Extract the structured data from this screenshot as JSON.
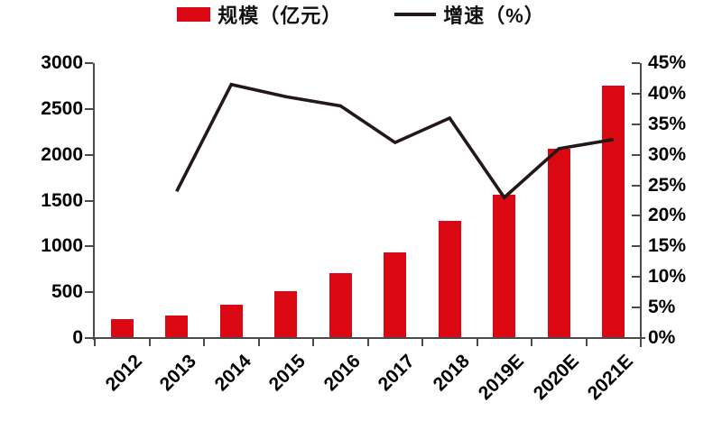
{
  "legend": {
    "items": [
      {
        "label": "规模（亿元）",
        "swatch": "bar"
      },
      {
        "label": "增速（%）",
        "swatch": "line"
      }
    ]
  },
  "colors": {
    "bar": "#DA0812",
    "line": "#231815",
    "axis": "#4A4A4A",
    "text": "#000000"
  },
  "chart_data": {
    "type": "bar+line",
    "title": "",
    "categories": [
      "2012",
      "2013",
      "2014",
      "2015",
      "2016",
      "2017",
      "2018",
      "2019E",
      "2020E",
      "2021E"
    ],
    "series": [
      {
        "name": "规模（亿元）",
        "type": "bar",
        "axis": "left",
        "values": [
          210,
          250,
          360,
          510,
          710,
          935,
          1280,
          1560,
          2070,
          2750
        ]
      },
      {
        "name": "增速（%）",
        "type": "line",
        "axis": "right",
        "values": [
          null,
          24,
          41.5,
          39.5,
          38,
          32,
          36,
          23,
          31,
          32.5
        ]
      }
    ],
    "left_axis": {
      "min": 0,
      "max": 3000,
      "step": 500,
      "labels": [
        "0",
        "500",
        "1000",
        "1500",
        "2000",
        "2500",
        "3000"
      ]
    },
    "right_axis": {
      "min": 0,
      "max": 45,
      "step": 5,
      "labels": [
        "0%",
        "5%",
        "10%",
        "15%",
        "20%",
        "25%",
        "30%",
        "35%",
        "40%",
        "45%"
      ]
    },
    "grid": false,
    "legend_position": "top-center"
  }
}
